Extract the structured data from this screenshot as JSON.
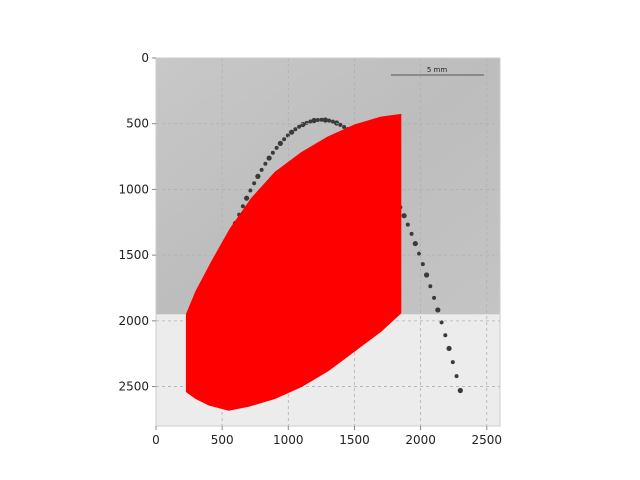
{
  "chart_data": {
    "type": "image",
    "title": "",
    "xlabel": "",
    "ylabel": "",
    "xlim": [
      0,
      2600
    ],
    "ylim": [
      2800,
      0
    ],
    "x_ticks": [
      "0",
      "500",
      "1000",
      "1500",
      "2000",
      "2500"
    ],
    "y_ticks": [
      "0",
      "500",
      "1000",
      "1500",
      "2000",
      "2500"
    ],
    "x_tick_values": [
      0,
      500,
      1000,
      1500,
      2000,
      2500
    ],
    "y_tick_values": [
      0,
      500,
      1000,
      1500,
      2000,
      2500
    ],
    "grid": true,
    "image": {
      "extent_x": [
        0,
        2600
      ],
      "extent_y": [
        0,
        1950
      ],
      "description_colors": {
        "light": "#cfcfcf",
        "dark": "#8a8a8a"
      },
      "scale_bar_label": "5 mm"
    },
    "overlay": {
      "color": "#ff0000",
      "polygon": [
        [
          230,
          1950
        ],
        [
          300,
          1780
        ],
        [
          420,
          1550
        ],
        [
          560,
          1300
        ],
        [
          720,
          1070
        ],
        [
          900,
          870
        ],
        [
          1100,
          720
        ],
        [
          1300,
          600
        ],
        [
          1500,
          510
        ],
        [
          1700,
          450
        ],
        [
          1850,
          430
        ],
        [
          1850,
          1940
        ],
        [
          1700,
          2080
        ],
        [
          1500,
          2230
        ],
        [
          1300,
          2380
        ],
        [
          1100,
          2500
        ],
        [
          900,
          2590
        ],
        [
          700,
          2650
        ],
        [
          550,
          2680
        ],
        [
          400,
          2640
        ],
        [
          300,
          2590
        ],
        [
          230,
          2540
        ]
      ]
    },
    "colors": {
      "axes_background": "#ececec",
      "overlay": "#ff0000"
    }
  }
}
